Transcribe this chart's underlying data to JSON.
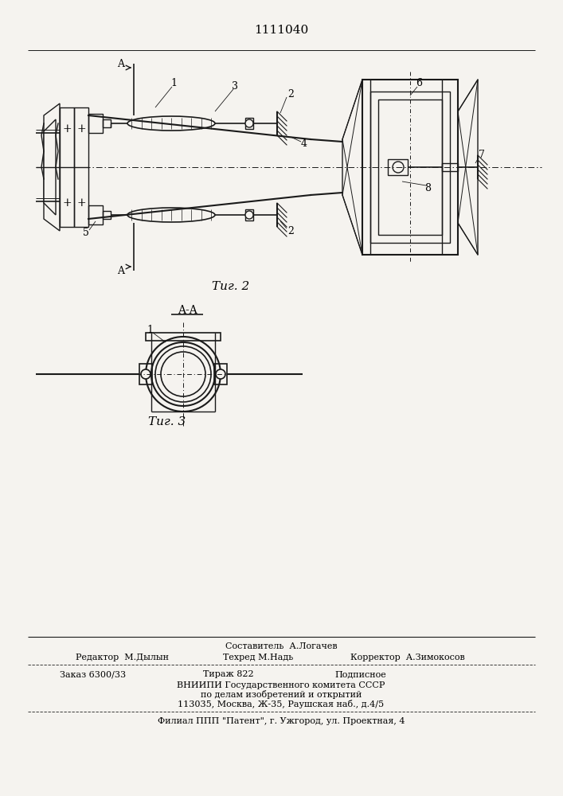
{
  "patent_number": "1111040",
  "fig2_label": "Τиг. 2",
  "fig3_label": "Τиг. 3",
  "fig3_section_label": "A-A",
  "footer_line1": "Составитель  А.Логачев",
  "footer_line2_col1": "Редактор  М.Дылын",
  "footer_line2_col2": "Техред М.Надь",
  "footer_line2_col3": "Корректор  А.Зимокосов",
  "footer_line3_col1": "Заказ 6300/33",
  "footer_line3_col2": "Тираж 822",
  "footer_line3_col3": "Подписное",
  "footer_line4": "ВНИИПИ Государственного комитета СССР",
  "footer_line5": "по делам изобретений и открытий",
  "footer_line6": "113035, Москва, Ж-35, Раушская наб., д.4/5",
  "footer_line7": "Филиал ППП \"Патент\", г. Ужгород, ул. Проектная, 4",
  "bg_color": "#f5f3ef",
  "line_color": "#1a1a1a",
  "line_width": 1.0
}
